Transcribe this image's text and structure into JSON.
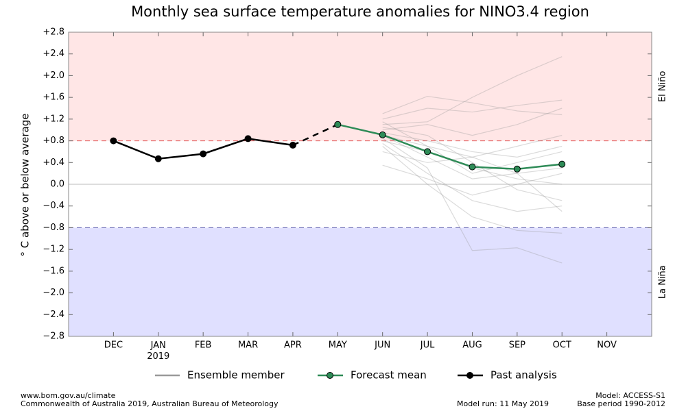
{
  "chart_data": {
    "type": "line",
    "title": "Monthly sea surface temperature anomalies for NINO3.4 region",
    "y_label": "° C above or below average",
    "categories": [
      "DEC",
      "JAN\n2019",
      "FEB",
      "MAR",
      "APR",
      "MAY",
      "JUN",
      "JUL",
      "AUG",
      "SEP",
      "OCT",
      "NOV"
    ],
    "ylim": [
      -2.8,
      2.8
    ],
    "yticks": [
      {
        "value": 2.8,
        "label": "+2.8"
      },
      {
        "value": 2.4,
        "label": "+2.4"
      },
      {
        "value": 2.0,
        "label": "+2.0"
      },
      {
        "value": 1.6,
        "label": "+1.6"
      },
      {
        "value": 1.2,
        "label": "+1.2"
      },
      {
        "value": 0.8,
        "label": "+0.8"
      },
      {
        "value": 0.4,
        "label": "+0.4"
      },
      {
        "value": 0,
        "label": "0.0"
      },
      {
        "value": -0.4,
        "label": "−0.4"
      },
      {
        "value": -0.8,
        "label": "−0.8"
      },
      {
        "value": -1.2,
        "label": "−1.2"
      },
      {
        "value": -1.6,
        "label": "−1.6"
      },
      {
        "value": -2.0,
        "label": "−2.0"
      },
      {
        "value": -2.4,
        "label": "−2.4"
      },
      {
        "value": -2.8,
        "label": "−2.8"
      }
    ],
    "el_nino": {
      "label": "El Niño",
      "threshold": 0.8,
      "color": "#e05050",
      "fill": "#ffe6e6"
    },
    "la_nina": {
      "label": "La Niña",
      "threshold": -0.8,
      "color": "#6060b0",
      "fill": "#e0e0ff"
    },
    "ensemble": {
      "name": "Ensemble member",
      "color": "#999999",
      "members": [
        [
          null,
          null,
          null,
          null,
          null,
          null,
          1.3,
          1.62,
          1.5,
          1.35,
          1.28,
          null
        ],
        [
          null,
          null,
          null,
          null,
          null,
          null,
          1.2,
          1.4,
          1.33,
          1.45,
          1.55,
          null
        ],
        [
          null,
          null,
          null,
          null,
          null,
          null,
          1.1,
          1.15,
          1.6,
          2.0,
          2.35,
          null
        ],
        [
          null,
          null,
          null,
          null,
          null,
          null,
          1.0,
          1.1,
          0.9,
          1.1,
          1.4,
          null
        ],
        [
          null,
          null,
          null,
          null,
          null,
          null,
          0.95,
          0.8,
          0.6,
          0.5,
          0.7,
          null
        ],
        [
          null,
          null,
          null,
          null,
          null,
          null,
          0.9,
          0.5,
          0.1,
          0.2,
          0.3,
          null
        ],
        [
          null,
          null,
          null,
          null,
          null,
          null,
          0.85,
          0.3,
          -1.22,
          -1.17,
          -1.45,
          null
        ],
        [
          null,
          null,
          null,
          null,
          null,
          null,
          0.8,
          0.6,
          0.3,
          0.1,
          0.0,
          null
        ],
        [
          null,
          null,
          null,
          null,
          null,
          null,
          0.75,
          0.2,
          -0.3,
          -0.5,
          -0.4,
          null
        ],
        [
          null,
          null,
          null,
          null,
          null,
          null,
          0.7,
          0.0,
          -0.6,
          -0.85,
          -0.9,
          null
        ],
        [
          null,
          null,
          null,
          null,
          null,
          null,
          0.6,
          0.4,
          0.5,
          0.7,
          0.9,
          null
        ],
        [
          null,
          null,
          null,
          null,
          null,
          null,
          1.05,
          0.9,
          0.4,
          -0.1,
          -0.3,
          null
        ],
        [
          null,
          null,
          null,
          null,
          null,
          null,
          0.35,
          0.1,
          -0.2,
          0.0,
          0.2,
          null
        ],
        [
          null,
          null,
          null,
          null,
          null,
          null,
          1.15,
          0.7,
          0.2,
          0.4,
          0.6,
          null
        ],
        [
          null,
          null,
          null,
          null,
          null,
          null,
          0.9,
          0.7,
          0.5,
          0.2,
          -0.5,
          null
        ]
      ]
    },
    "series": [
      {
        "name": "Forecast mean",
        "color": "#2e8b57",
        "values": [
          null,
          null,
          null,
          null,
          null,
          1.1,
          0.91,
          0.6,
          0.32,
          0.28,
          0.37,
          null
        ]
      },
      {
        "name": "Past analysis",
        "color": "#000000",
        "values": [
          0.8,
          0.47,
          0.56,
          0.84,
          0.72,
          null,
          null,
          null,
          null,
          null,
          null,
          null
        ]
      }
    ],
    "footer": {
      "left": [
        "www.bom.gov.au/climate",
        "Commonwealth of Australia 2019, Australian Bureau of Meteorology"
      ],
      "center": "Model run: 11 May 2019",
      "right": [
        "Model: ACCESS-S1",
        "Base period 1990-2012"
      ]
    }
  }
}
